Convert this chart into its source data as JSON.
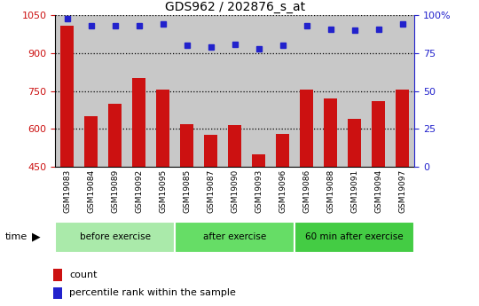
{
  "title": "GDS962 / 202876_s_at",
  "categories": [
    "GSM19083",
    "GSM19084",
    "GSM19089",
    "GSM19092",
    "GSM19095",
    "GSM19085",
    "GSM19087",
    "GSM19090",
    "GSM19093",
    "GSM19096",
    "GSM19086",
    "GSM19088",
    "GSM19091",
    "GSM19094",
    "GSM19097"
  ],
  "bar_values": [
    1010,
    650,
    700,
    800,
    755,
    620,
    575,
    615,
    500,
    580,
    755,
    720,
    640,
    710,
    755
  ],
  "dot_values": [
    98,
    93,
    93,
    93,
    94,
    80,
    79,
    81,
    78,
    80,
    93,
    91,
    90,
    91,
    94
  ],
  "ylim_left": [
    450,
    1050
  ],
  "ylim_right": [
    0,
    100
  ],
  "yticks_left": [
    450,
    600,
    750,
    900,
    1050
  ],
  "yticks_right": [
    0,
    25,
    50,
    75,
    100
  ],
  "bar_color": "#cc1111",
  "dot_color": "#2222cc",
  "col_bg_color": "#c8c8c8",
  "plot_bg_color": "#ffffff",
  "groups": [
    {
      "label": "before exercise",
      "start": 0,
      "end": 5,
      "color": "#aaeaaa"
    },
    {
      "label": "after exercise",
      "start": 5,
      "end": 10,
      "color": "#66dd66"
    },
    {
      "label": "60 min after exercise",
      "start": 10,
      "end": 15,
      "color": "#44cc44"
    }
  ],
  "legend_items": [
    {
      "label": "count",
      "color": "#cc1111"
    },
    {
      "label": "percentile rank within the sample",
      "color": "#2222cc"
    }
  ]
}
